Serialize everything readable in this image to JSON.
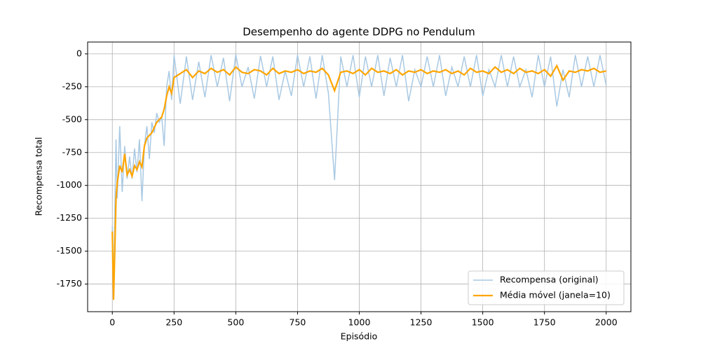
{
  "chart_data": {
    "type": "line",
    "title": "Desempenho do agente DDPG no Pendulum",
    "x_label": "Episódio",
    "y_label": "Recompensa total",
    "x": [
      0,
      5,
      10,
      15,
      20,
      30,
      40,
      50,
      60,
      70,
      80,
      90,
      100,
      110,
      120,
      130,
      140,
      150,
      160,
      170,
      180,
      190,
      200,
      210,
      220,
      230,
      240,
      250,
      275,
      300,
      325,
      350,
      375,
      400,
      425,
      450,
      475,
      500,
      525,
      550,
      575,
      600,
      625,
      650,
      675,
      700,
      725,
      750,
      775,
      800,
      825,
      850,
      875,
      900,
      925,
      950,
      975,
      1000,
      1025,
      1050,
      1075,
      1100,
      1125,
      1150,
      1175,
      1200,
      1225,
      1250,
      1275,
      1300,
      1325,
      1350,
      1375,
      1400,
      1425,
      1450,
      1475,
      1500,
      1525,
      1550,
      1575,
      1600,
      1625,
      1650,
      1675,
      1700,
      1725,
      1750,
      1775,
      1800,
      1825,
      1850,
      1875,
      1900,
      1925,
      1950,
      1975,
      2000
    ],
    "series": [
      {
        "name": "Recompensa (original)",
        "color": "#a9c9e3",
        "width": 1.5,
        "values": [
          -1310,
          -1850,
          -1200,
          -650,
          -1100,
          -550,
          -1050,
          -700,
          -950,
          -780,
          -950,
          -720,
          -900,
          -650,
          -1120,
          -700,
          -550,
          -800,
          -520,
          -600,
          -450,
          -520,
          -480,
          -700,
          -250,
          -130,
          -350,
          -10,
          -380,
          -20,
          -350,
          -60,
          -330,
          -10,
          -250,
          -30,
          -360,
          -5,
          -250,
          -100,
          -340,
          -15,
          -250,
          -20,
          -350,
          -130,
          -320,
          -10,
          -250,
          -20,
          -340,
          -10,
          -300,
          -960,
          -20,
          -250,
          -10,
          -330,
          -20,
          -250,
          -10,
          -320,
          -30,
          -250,
          -10,
          -360,
          -120,
          -250,
          -20,
          -250,
          -10,
          -320,
          -100,
          -250,
          -20,
          -250,
          -10,
          -320,
          -120,
          -250,
          -10,
          -250,
          -20,
          -250,
          -120,
          -330,
          -10,
          -250,
          -20,
          -400,
          -120,
          -330,
          -10,
          -250,
          -20,
          -250,
          -10,
          -240
        ]
      },
      {
        "name": "Média móvel (janela=10)",
        "color": "#ffa500",
        "width": 2.2,
        "values": [
          -1350,
          -1870,
          -1500,
          -1100,
          -980,
          -850,
          -900,
          -760,
          -920,
          -880,
          -930,
          -850,
          -880,
          -820,
          -860,
          -700,
          -640,
          -620,
          -600,
          -560,
          -520,
          -500,
          -480,
          -420,
          -320,
          -250,
          -300,
          -180,
          -150,
          -120,
          -180,
          -130,
          -150,
          -110,
          -140,
          -120,
          -160,
          -100,
          -140,
          -150,
          -120,
          -130,
          -160,
          -110,
          -150,
          -130,
          -140,
          -120,
          -150,
          -130,
          -140,
          -110,
          -160,
          -280,
          -140,
          -130,
          -150,
          -120,
          -160,
          -110,
          -140,
          -130,
          -150,
          -120,
          -160,
          -130,
          -140,
          -120,
          -150,
          -130,
          -140,
          -120,
          -150,
          -130,
          -160,
          -110,
          -140,
          -130,
          -150,
          -100,
          -140,
          -120,
          -150,
          -110,
          -140,
          -130,
          -150,
          -120,
          -170,
          -90,
          -200,
          -130,
          -140,
          -120,
          -130,
          -110,
          -140,
          -130
        ]
      }
    ],
    "xlim": [
      -100,
      2100
    ],
    "ylim": [
      -1960,
      90
    ],
    "xticks": [
      0,
      250,
      500,
      750,
      1000,
      1250,
      1500,
      1750,
      2000
    ],
    "yticks": [
      -1750,
      -1500,
      -1250,
      -1000,
      -750,
      -500,
      -250,
      0
    ],
    "grid": true,
    "legend": "lower right"
  }
}
